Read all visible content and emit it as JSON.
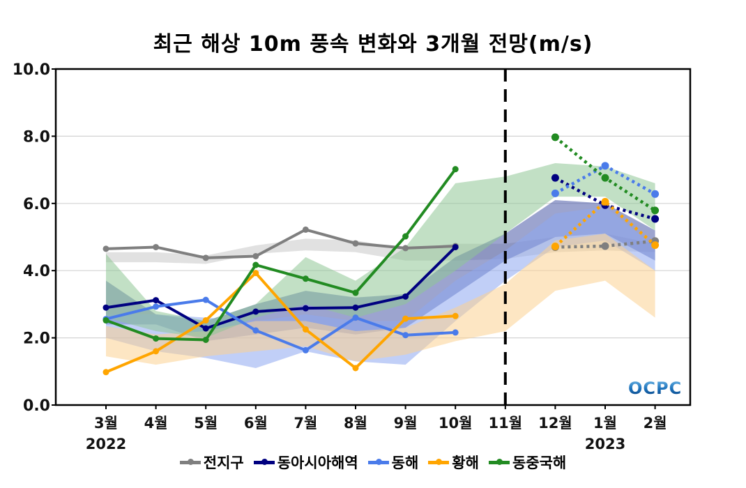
{
  "chart_data": {
    "type": "line",
    "title": "최근 해상 10m 풍속 변화와 3개월 전망(m/s)",
    "xlabel": "",
    "ylabel": "",
    "ylim": [
      0,
      10
    ],
    "yticks": [
      "0.0",
      "2.0",
      "4.0",
      "6.0",
      "8.0",
      "10.0"
    ],
    "ytick_values": [
      0,
      2,
      4,
      6,
      8,
      10
    ],
    "grid": true,
    "categories": [
      "3월",
      "4월",
      "5월",
      "6월",
      "7월",
      "8월",
      "9월",
      "10월",
      "11월",
      "12월",
      "1월",
      "2월"
    ],
    "year_labels": [
      {
        "index": 0,
        "label": "2022"
      },
      {
        "index": 10,
        "label": "2023"
      }
    ],
    "divider_index": 8,
    "divider_style": "dashed",
    "observed_range": [
      0,
      7
    ],
    "forecast_range": [
      9,
      11
    ],
    "legend_position": "bottom",
    "watermark": "OCPC",
    "series": [
      {
        "name": "전지구",
        "color": "#7f7f7f",
        "observed": [
          4.65,
          4.7,
          4.38,
          4.43,
          5.22,
          4.81,
          4.67,
          4.73
        ],
        "forecast": [
          4.7,
          4.73,
          4.88
        ],
        "band_color": "#c8c8c8",
        "band_lower": [
          4.25,
          4.25,
          4.2,
          4.5,
          4.6,
          4.55,
          4.3,
          4.3,
          4.35,
          4.55,
          4.6,
          4.55
        ],
        "band_upper": [
          4.55,
          4.55,
          4.45,
          4.75,
          4.95,
          4.9,
          4.65,
          4.8,
          4.8,
          5.0,
          5.1,
          4.8
        ]
      },
      {
        "name": "동아시아해역",
        "color": "#000080",
        "observed": [
          2.9,
          3.12,
          2.28,
          2.78,
          2.88,
          2.9,
          3.23,
          4.7
        ],
        "forecast": [
          6.76,
          5.95,
          5.54
        ],
        "band_color": "#4a5aa8",
        "band_lower": [
          2.4,
          2.4,
          1.9,
          2.1,
          2.3,
          2.1,
          2.3,
          3.3,
          4.3,
          5.0,
          5.1,
          4.3
        ],
        "band_upper": [
          3.7,
          2.7,
          2.5,
          3.0,
          3.4,
          3.2,
          3.3,
          4.4,
          5.1,
          6.1,
          6.0,
          5.2
        ]
      },
      {
        "name": "동해",
        "color": "#4a7bea",
        "observed": [
          2.56,
          2.93,
          3.13,
          2.22,
          1.63,
          2.6,
          2.08,
          2.16
        ],
        "forecast": [
          6.3,
          7.12,
          6.28
        ],
        "band_color": "#8ea8f0",
        "band_lower": [
          2.0,
          1.6,
          1.4,
          1.1,
          1.6,
          1.3,
          1.2,
          2.5,
          3.7,
          4.7,
          4.9,
          4.0
        ],
        "band_upper": [
          2.7,
          2.7,
          2.6,
          2.5,
          2.7,
          2.5,
          2.5,
          3.7,
          4.6,
          5.7,
          5.9,
          4.7
        ]
      },
      {
        "name": "황해",
        "color": "#ffa500",
        "observed": [
          0.98,
          1.6,
          2.52,
          3.93,
          2.25,
          1.1,
          2.57,
          2.65
        ],
        "forecast": [
          4.72,
          6.05,
          4.76
        ],
        "band_color": "#fbd291",
        "band_lower": [
          1.45,
          1.2,
          1.45,
          1.6,
          1.75,
          1.3,
          1.5,
          1.9,
          2.2,
          3.4,
          3.7,
          2.6
        ],
        "band_upper": [
          2.35,
          2.1,
          2.2,
          2.5,
          2.5,
          2.2,
          2.3,
          2.9,
          3.6,
          4.9,
          5.1,
          4.0
        ]
      },
      {
        "name": "동중국해",
        "color": "#228b22",
        "observed": [
          2.52,
          1.98,
          1.94,
          4.17,
          3.76,
          3.34,
          5.02,
          7.02
        ],
        "forecast": [
          7.97,
          6.76,
          5.79
        ],
        "band_color": "#8fc796",
        "band_lower": [
          2.6,
          2.2,
          2.0,
          2.6,
          3.0,
          2.6,
          3.0,
          4.0,
          5.1,
          6.2,
          6.2,
          5.2
        ],
        "band_upper": [
          4.5,
          2.8,
          2.5,
          3.0,
          4.4,
          3.7,
          4.7,
          6.6,
          6.8,
          7.2,
          7.1,
          6.6
        ]
      }
    ]
  }
}
